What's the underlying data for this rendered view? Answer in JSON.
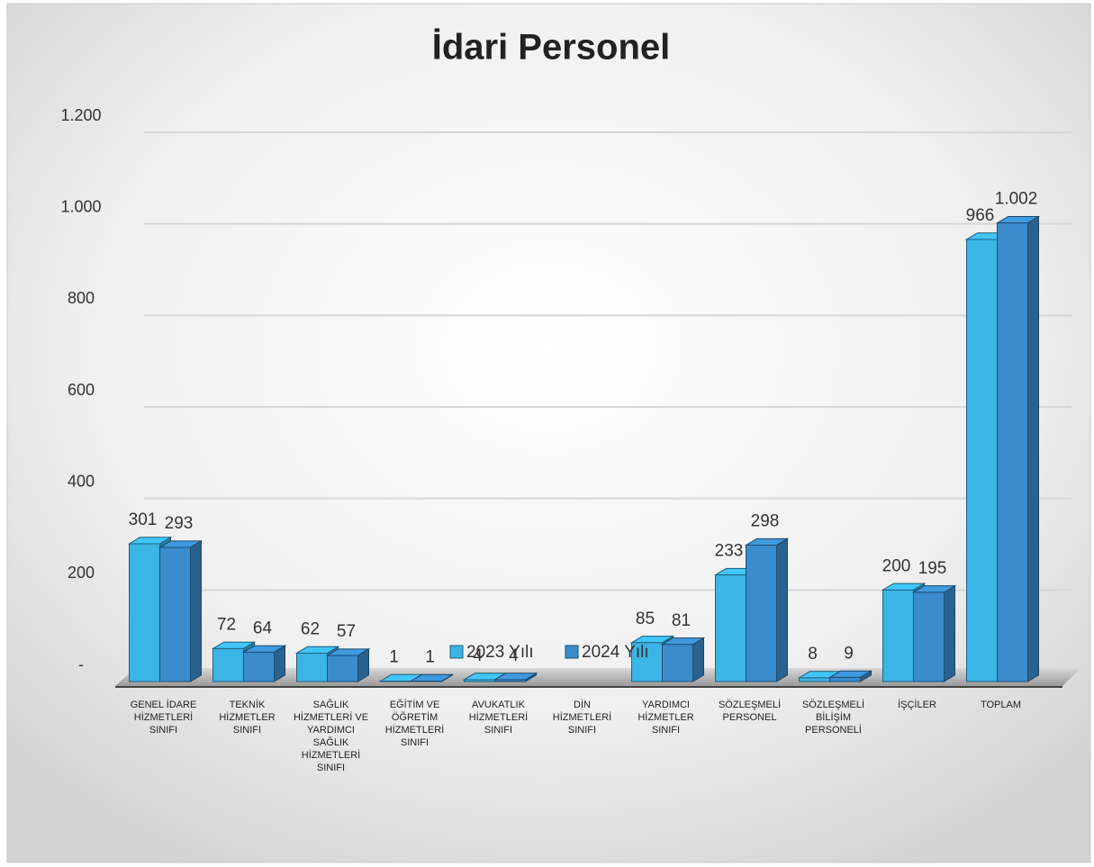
{
  "chart_data": {
    "type": "bar3d",
    "title": "İdari Personel",
    "categories": [
      "GENEL İDARE HİZMETLERİ SINIFI",
      "TEKNİK HİZMETLER SINIFI",
      "SAĞLIK HİZMETLERİ VE YARDIMCI SAĞLIK HİZMETLERİ SINIFI",
      "EĞİTİM VE ÖĞRETİM HİZMETLERİ SINIFI",
      "AVUKATLIK HİZMETLERİ SINIFI",
      "DİN HİZMETLERİ SINIFI",
      "YARDIMCI HİZMETLER SINIFI",
      "SÖZLEŞMELİ PERSONEL",
      "SÖZLEŞMELİ BİLİŞİM PERSONELİ",
      "İŞÇİLER",
      "TOPLAM"
    ],
    "series": [
      {
        "name": "2023 Yılı",
        "color": "#3bb4e6",
        "values": [
          301,
          72,
          62,
          1,
          4,
          null,
          85,
          233,
          8,
          200,
          966
        ]
      },
      {
        "name": "2024 Yılı",
        "color": "#3a8ccc",
        "values": [
          293,
          64,
          57,
          1,
          4,
          null,
          81,
          298,
          9,
          195,
          1002
        ],
        "value_labels": [
          "293",
          "64",
          "57",
          "1",
          "4",
          null,
          "81",
          "298",
          "9",
          "195",
          "1.002"
        ]
      }
    ],
    "ylim": [
      0,
      1200
    ],
    "yticks": [
      {
        "value": 0,
        "label": "-"
      },
      200,
      400,
      600,
      800,
      {
        "value": 1000,
        "label": "1.000"
      },
      {
        "value": 1200,
        "label": "1.200"
      }
    ],
    "grid": true,
    "legend": "bottom"
  }
}
